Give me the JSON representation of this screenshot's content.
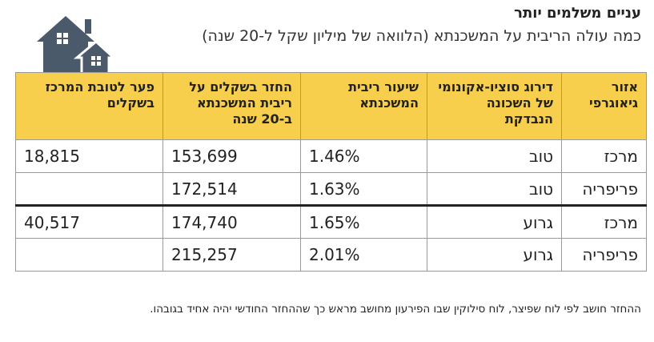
{
  "header": {
    "title": "עניים משלמים יותר",
    "subtitle": "כמה עולה הריבית על המשכנתא (הלוואה של מיליון שקל ל-20 שנה)"
  },
  "table": {
    "columns": [
      "אזור גיאוגרפי",
      "דירוג סוציו-אקונומי של השכונה הנבדקת",
      "שיעור ריבית המשכנתא",
      "החזר בשקלים על ריבית המשכנתא ב-20 שנה",
      "פער לטובת המרכז בשקלים"
    ],
    "rows": [
      [
        "מרכז",
        "טוב",
        "1.46%",
        "153,699",
        "18,815"
      ],
      [
        "פריפריה",
        "טוב",
        "1.63%",
        "172,514",
        ""
      ],
      [
        "מרכז",
        "גרוע",
        "1.65%",
        "174,740",
        "40,517"
      ],
      [
        "פריפריה",
        "גרוע",
        "2.01%",
        "215,257",
        ""
      ]
    ]
  },
  "footnote": "ההחזר חושב לפי לוח שפיצר, לוח סילוקין שבו הפירעון מחושב מראש כך שההחזר החודשי יהיה אחיד בגובהו.",
  "colors": {
    "header_fill": "#f7cf4d",
    "logo": "#4a5a6a"
  },
  "icons": {
    "logo": "houses-icon"
  }
}
